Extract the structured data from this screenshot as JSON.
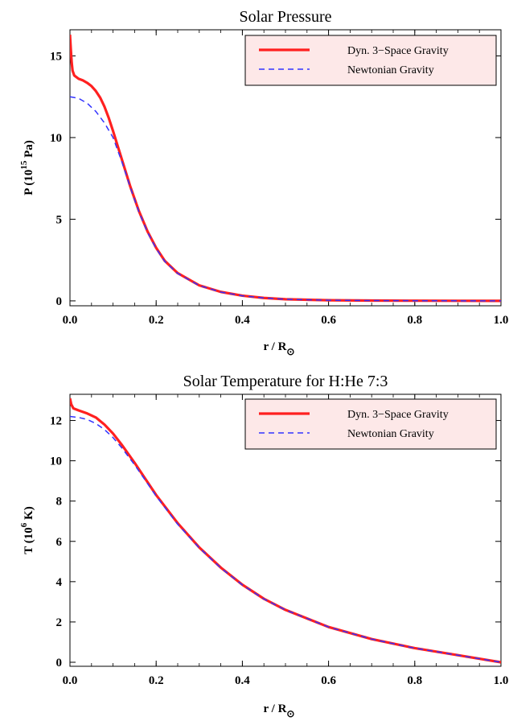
{
  "chart_data": [
    {
      "type": "line",
      "title": "Solar Pressure",
      "xlabel": "r / R",
      "xlabel_subscript": "⊙",
      "ylabel": "P (10",
      "ylabel_sup": "15",
      "ylabel_tail": " Pa)",
      "xlim": [
        0,
        1.0
      ],
      "ylim": [
        -0.3,
        16.6
      ],
      "xticks": [
        0.0,
        0.2,
        0.4,
        0.6,
        0.8,
        1.0
      ],
      "xtick_labels": [
        "0.0",
        "0.2",
        "0.4",
        "0.6",
        "0.8",
        "1.0"
      ],
      "yticks": [
        0,
        5,
        10,
        15
      ],
      "ytick_labels": [
        "0",
        "5",
        "10",
        "15"
      ],
      "grid": false,
      "legend_position": "top-right",
      "legend_background": "#fde8e8",
      "series": [
        {
          "name": "Dyn. 3−Space Gravity",
          "color": "#ff2020",
          "style": "solid",
          "points": [
            [
              0.0,
              16.3
            ],
            [
              0.002,
              15.4
            ],
            [
              0.004,
              14.6
            ],
            [
              0.006,
              14.1
            ],
            [
              0.01,
              13.8
            ],
            [
              0.02,
              13.6
            ],
            [
              0.03,
              13.5
            ],
            [
              0.04,
              13.35
            ],
            [
              0.05,
              13.15
            ],
            [
              0.06,
              12.85
            ],
            [
              0.07,
              12.45
            ],
            [
              0.08,
              11.9
            ],
            [
              0.09,
              11.2
            ],
            [
              0.1,
              10.4
            ],
            [
              0.12,
              8.7
            ],
            [
              0.14,
              7.0
            ],
            [
              0.16,
              5.5
            ],
            [
              0.18,
              4.25
            ],
            [
              0.2,
              3.25
            ],
            [
              0.22,
              2.45
            ],
            [
              0.25,
              1.7
            ],
            [
              0.3,
              0.95
            ],
            [
              0.35,
              0.55
            ],
            [
              0.4,
              0.32
            ],
            [
              0.45,
              0.18
            ],
            [
              0.5,
              0.1
            ],
            [
              0.6,
              0.04
            ],
            [
              0.7,
              0.02
            ],
            [
              0.8,
              0.01
            ],
            [
              0.9,
              0.005
            ],
            [
              1.0,
              0.0
            ]
          ]
        },
        {
          "name": "Newtonian Gravity",
          "color": "#3333ff",
          "style": "dashed",
          "points": [
            [
              0.0,
              12.5
            ],
            [
              0.02,
              12.4
            ],
            [
              0.04,
              12.1
            ],
            [
              0.06,
              11.6
            ],
            [
              0.08,
              10.9
            ],
            [
              0.1,
              10.0
            ],
            [
              0.12,
              8.55
            ],
            [
              0.14,
              6.95
            ],
            [
              0.16,
              5.45
            ],
            [
              0.18,
              4.2
            ],
            [
              0.2,
              3.2
            ],
            [
              0.22,
              2.42
            ],
            [
              0.25,
              1.68
            ],
            [
              0.3,
              0.94
            ],
            [
              0.35,
              0.54
            ],
            [
              0.4,
              0.31
            ],
            [
              0.45,
              0.18
            ],
            [
              0.5,
              0.1
            ],
            [
              0.6,
              0.04
            ],
            [
              0.7,
              0.02
            ],
            [
              0.8,
              0.01
            ],
            [
              0.9,
              0.005
            ],
            [
              1.0,
              0.0
            ]
          ]
        }
      ]
    },
    {
      "type": "line",
      "title": "Solar Temperature for H:He 7:3",
      "xlabel": "r / R",
      "xlabel_subscript": "⊙",
      "ylabel": "T (10",
      "ylabel_sup": "6",
      "ylabel_tail": " K)",
      "xlim": [
        0,
        1.0
      ],
      "ylim": [
        -0.2,
        13.3
      ],
      "xticks": [
        0.0,
        0.2,
        0.4,
        0.6,
        0.8,
        1.0
      ],
      "xtick_labels": [
        "0.0",
        "0.2",
        "0.4",
        "0.6",
        "0.8",
        "1.0"
      ],
      "yticks": [
        0,
        2,
        4,
        6,
        8,
        10,
        12
      ],
      "ytick_labels": [
        "0",
        "2",
        "4",
        "6",
        "8",
        "10",
        "12"
      ],
      "grid": false,
      "legend_position": "top-right",
      "legend_background": "#fde8e8",
      "series": [
        {
          "name": "Dyn. 3−Space Gravity",
          "color": "#ff2020",
          "style": "solid",
          "points": [
            [
              0.0,
              13.1
            ],
            [
              0.003,
              12.8
            ],
            [
              0.008,
              12.6
            ],
            [
              0.02,
              12.5
            ],
            [
              0.04,
              12.35
            ],
            [
              0.06,
              12.15
            ],
            [
              0.08,
              11.8
            ],
            [
              0.1,
              11.35
            ],
            [
              0.12,
              10.8
            ],
            [
              0.15,
              9.9
            ],
            [
              0.2,
              8.3
            ],
            [
              0.25,
              6.9
            ],
            [
              0.3,
              5.7
            ],
            [
              0.35,
              4.7
            ],
            [
              0.4,
              3.85
            ],
            [
              0.45,
              3.15
            ],
            [
              0.5,
              2.6
            ],
            [
              0.6,
              1.75
            ],
            [
              0.7,
              1.15
            ],
            [
              0.8,
              0.7
            ],
            [
              0.9,
              0.35
            ],
            [
              1.0,
              0.0
            ]
          ]
        },
        {
          "name": "Newtonian Gravity",
          "color": "#3333ff",
          "style": "dashed",
          "points": [
            [
              0.0,
              12.2
            ],
            [
              0.02,
              12.15
            ],
            [
              0.04,
              12.05
            ],
            [
              0.06,
              11.85
            ],
            [
              0.08,
              11.55
            ],
            [
              0.1,
              11.15
            ],
            [
              0.12,
              10.65
            ],
            [
              0.15,
              9.8
            ],
            [
              0.2,
              8.25
            ],
            [
              0.25,
              6.85
            ],
            [
              0.3,
              5.68
            ],
            [
              0.35,
              4.68
            ],
            [
              0.4,
              3.84
            ],
            [
              0.45,
              3.14
            ],
            [
              0.5,
              2.6
            ],
            [
              0.6,
              1.75
            ],
            [
              0.7,
              1.15
            ],
            [
              0.8,
              0.7
            ],
            [
              0.9,
              0.35
            ],
            [
              1.0,
              0.0
            ]
          ]
        }
      ]
    }
  ]
}
